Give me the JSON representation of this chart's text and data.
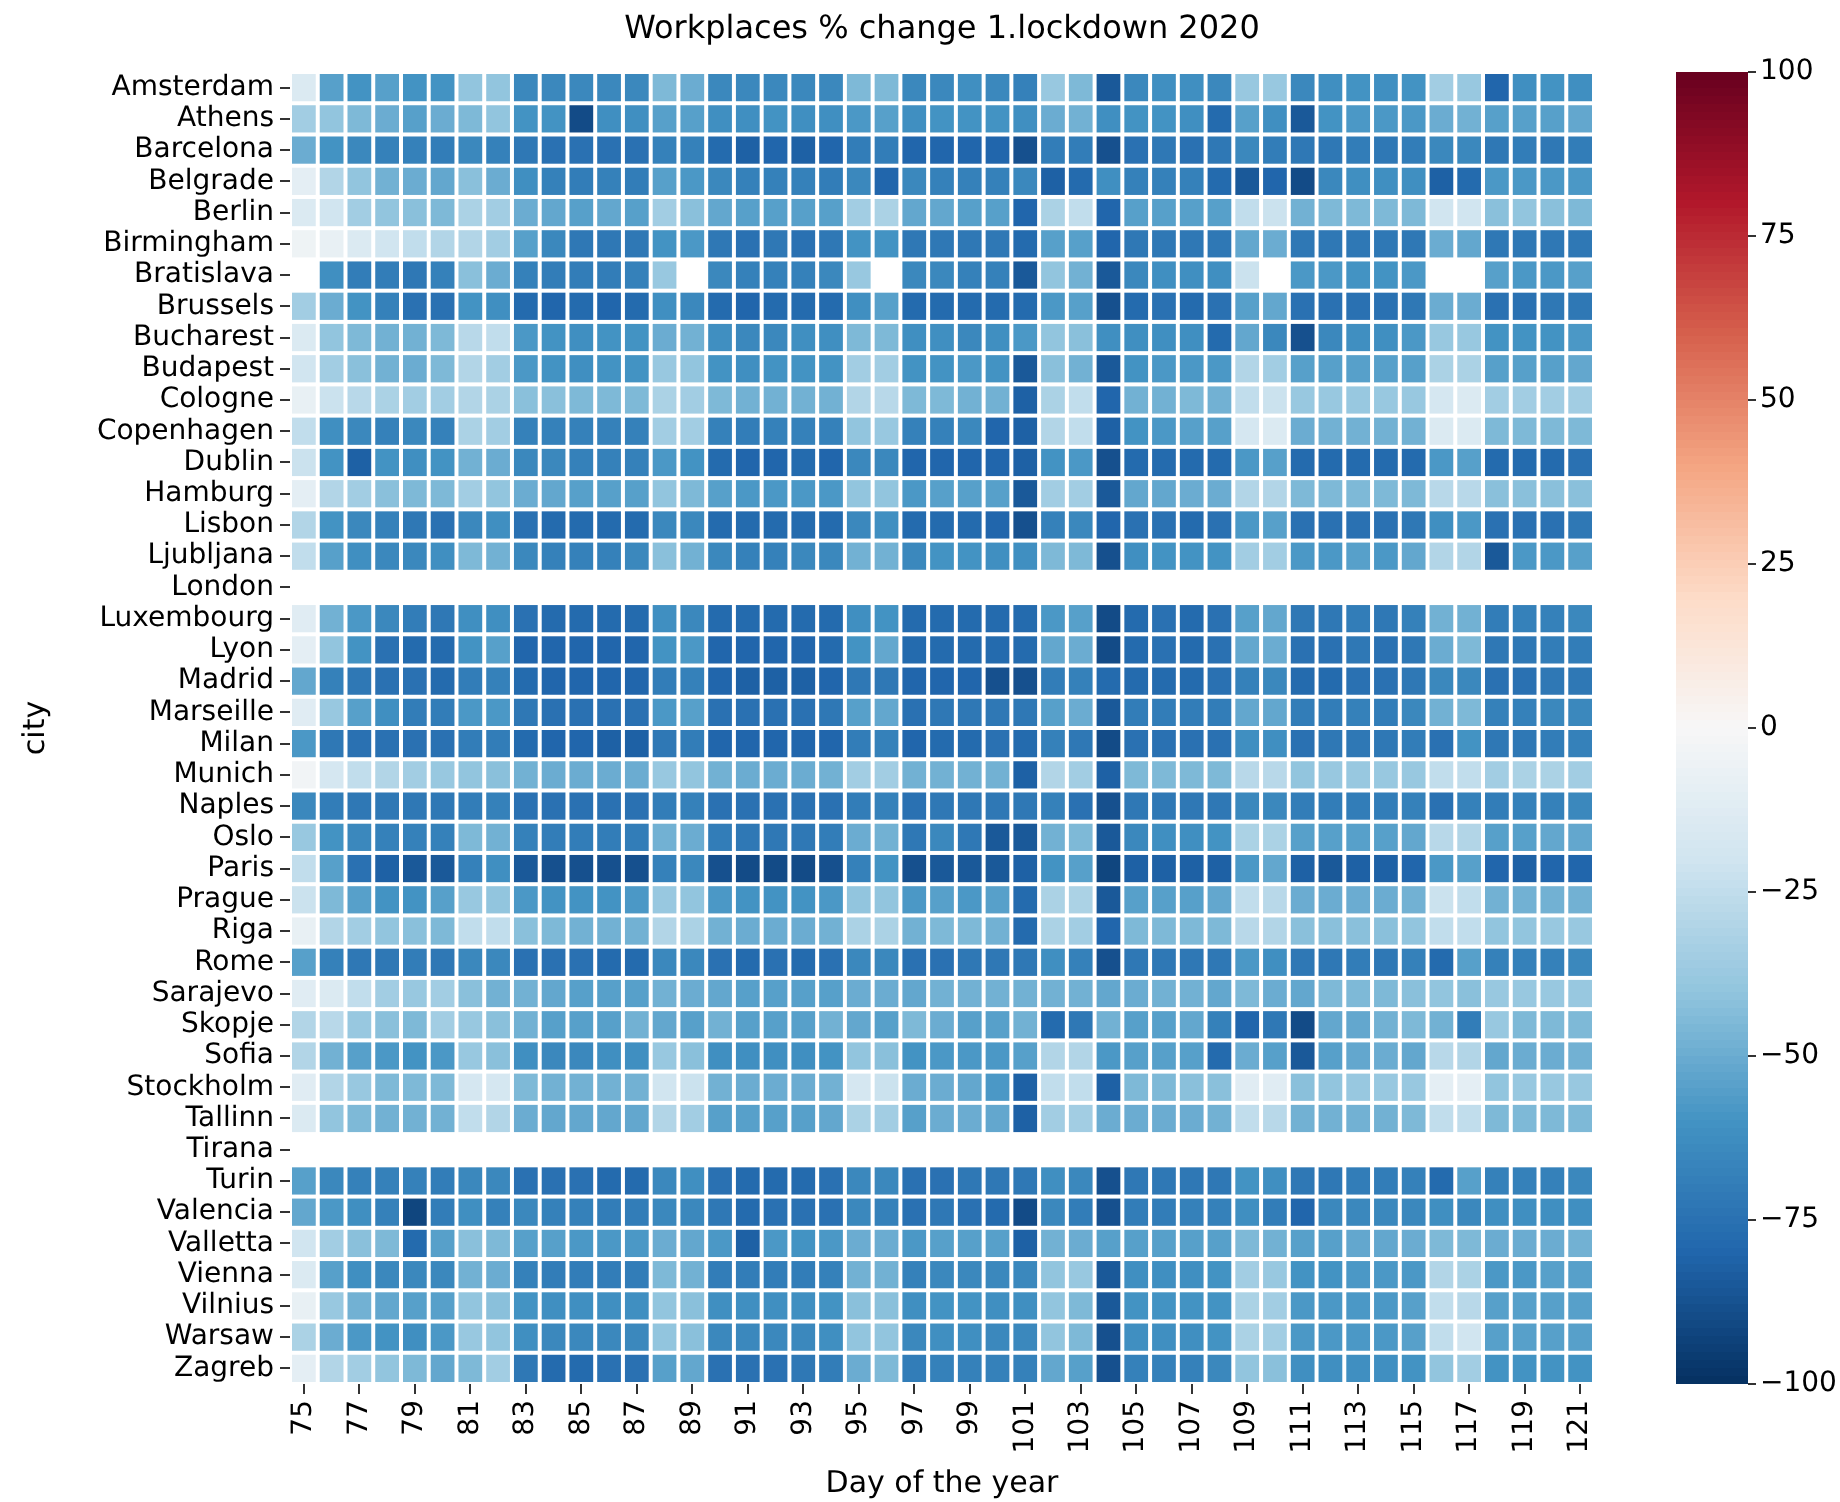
{
  "chart_data": {
    "type": "heatmap",
    "title": "Workplaces % change 1.lockdown 2020",
    "xlabel": "Day of the year",
    "ylabel": "city",
    "categories": [
      "75",
      null,
      "77",
      null,
      "79",
      null,
      "81",
      null,
      "83",
      null,
      "85",
      null,
      "87",
      null,
      "89",
      null,
      "91",
      null,
      "93",
      null,
      "95",
      null,
      "97",
      null,
      "99",
      null,
      "101",
      null,
      "103",
      null,
      "105",
      null,
      "107",
      null,
      "109",
      null,
      "111",
      null,
      "113",
      null,
      "115",
      null,
      "117",
      null,
      "119",
      null,
      "121"
    ],
    "y_categories": [
      "Amsterdam",
      "Athens",
      "Barcelona",
      "Belgrade",
      "Berlin",
      "Birmingham",
      "Bratislava",
      "Brussels",
      "Bucharest",
      "Budapest",
      "Cologne",
      "Copenhagen",
      "Dublin",
      "Hamburg",
      "Lisbon",
      "Ljubljana",
      "London",
      "Luxembourg",
      "Lyon",
      "Madrid",
      "Marseille",
      "Milan",
      "Munich",
      "Naples",
      "Oslo",
      "Paris",
      "Prague",
      "Riga",
      "Rome",
      "Sarajevo",
      "Skopje",
      "Sofia",
      "Stockholm",
      "Tallinn",
      "Tirana",
      "Turin",
      "Valencia",
      "Valletta",
      "Vienna",
      "Vilnius",
      "Warsaw",
      "Zagreb"
    ],
    "cells": [
      [
        -15,
        -55,
        -60,
        -55,
        -60,
        -60,
        -40,
        -40,
        -65,
        -65,
        -65,
        -65,
        -65,
        -45,
        -50,
        -65,
        -65,
        -65,
        -65,
        -65,
        -45,
        -45,
        -65,
        -65,
        -62,
        -65,
        -68,
        -38,
        -45,
        -85,
        -65,
        -62,
        -62,
        -65,
        -38,
        -38,
        -65,
        -62,
        -60,
        -62,
        -60,
        -35,
        -38,
        -80,
        -62,
        -60,
        -62
      ],
      [
        -35,
        -40,
        -45,
        -50,
        -55,
        -50,
        -45,
        -40,
        -60,
        -60,
        -90,
        -62,
        -62,
        -55,
        -55,
        -62,
        -62,
        -60,
        -62,
        -62,
        -58,
        -55,
        -62,
        -60,
        -60,
        -60,
        -62,
        -50,
        -48,
        -62,
        -60,
        -60,
        -62,
        -78,
        -55,
        -62,
        -85,
        -60,
        -58,
        -58,
        -58,
        -50,
        -48,
        -55,
        -55,
        -55,
        -52
      ],
      [
        -50,
        -60,
        -65,
        -68,
        -68,
        -70,
        -65,
        -68,
        -72,
        -75,
        -75,
        -75,
        -75,
        -68,
        -68,
        -78,
        -82,
        -80,
        -82,
        -80,
        -70,
        -70,
        -80,
        -80,
        -80,
        -80,
        -88,
        -70,
        -70,
        -88,
        -75,
        -72,
        -75,
        -72,
        -65,
        -70,
        -72,
        -72,
        -70,
        -72,
        -70,
        -65,
        -65,
        -72,
        -70,
        -72,
        -70
      ],
      [
        -10,
        -30,
        -40,
        -48,
        -50,
        -52,
        -42,
        -50,
        -62,
        -68,
        -70,
        -68,
        -70,
        -55,
        -58,
        -65,
        -68,
        -68,
        -68,
        -70,
        -65,
        -80,
        -65,
        -68,
        -68,
        -68,
        -65,
        -82,
        -78,
        -62,
        -68,
        -68,
        -68,
        -78,
        -85,
        -80,
        -90,
        -65,
        -62,
        -62,
        -62,
        -82,
        -78,
        -58,
        -58,
        -58,
        -58
      ],
      [
        -15,
        -20,
        -35,
        -40,
        -42,
        -45,
        -32,
        -35,
        -50,
        -52,
        -55,
        -52,
        -55,
        -35,
        -42,
        -52,
        -55,
        -55,
        -55,
        -55,
        -35,
        -32,
        -52,
        -52,
        -55,
        -55,
        -80,
        -32,
        -25,
        -80,
        -55,
        -55,
        -55,
        -55,
        -25,
        -22,
        -48,
        -45,
        -45,
        -45,
        -45,
        -20,
        -20,
        -42,
        -40,
        -42,
        -45
      ],
      [
        -5,
        -8,
        -15,
        -20,
        -25,
        -30,
        -30,
        -35,
        -55,
        -65,
        -72,
        -72,
        -72,
        -60,
        -58,
        -72,
        -75,
        -72,
        -75,
        -72,
        -60,
        -60,
        -72,
        -72,
        -72,
        -72,
        -78,
        -55,
        -55,
        -80,
        -72,
        -72,
        -72,
        -72,
        -52,
        -50,
        -72,
        -72,
        -72,
        -72,
        -72,
        -50,
        -52,
        -72,
        -72,
        -72,
        -72
      ],
      [
        null,
        -62,
        -70,
        -70,
        -72,
        -68,
        -42,
        -50,
        -68,
        -70,
        -70,
        -70,
        -68,
        -38,
        null,
        -65,
        -68,
        -68,
        -68,
        -65,
        -38,
        null,
        -65,
        -65,
        -68,
        -68,
        -85,
        -40,
        -48,
        -85,
        -65,
        -62,
        -62,
        -62,
        -22,
        null,
        -58,
        -58,
        -60,
        -60,
        -58,
        null,
        null,
        -55,
        -58,
        -58,
        -55
      ],
      [
        -35,
        -50,
        -60,
        -68,
        -75,
        -75,
        -60,
        -62,
        -78,
        -80,
        -78,
        -80,
        -78,
        -62,
        -65,
        -78,
        -80,
        -78,
        -78,
        -78,
        -62,
        -55,
        -78,
        -78,
        -78,
        -78,
        -78,
        -58,
        -55,
        -88,
        -78,
        -75,
        -78,
        -75,
        -55,
        -52,
        -75,
        -75,
        -75,
        -75,
        -72,
        -50,
        -50,
        -75,
        -75,
        -72,
        -72
      ],
      [
        -15,
        -40,
        -45,
        -48,
        -48,
        -45,
        -28,
        -25,
        -58,
        -60,
        -62,
        -60,
        -60,
        -50,
        -48,
        -62,
        -65,
        -65,
        -62,
        -62,
        -45,
        -45,
        -62,
        -62,
        -65,
        -62,
        -58,
        -40,
        -42,
        -62,
        -62,
        -62,
        -62,
        -78,
        -52,
        -65,
        -88,
        -65,
        -62,
        -62,
        -58,
        -38,
        -38,
        -60,
        -60,
        -60,
        -58
      ],
      [
        -20,
        -35,
        -42,
        -48,
        -50,
        -45,
        -30,
        -35,
        -58,
        -60,
        -62,
        -60,
        -60,
        -38,
        -40,
        -60,
        -62,
        -60,
        -60,
        -60,
        -35,
        -35,
        -60,
        -60,
        -58,
        -60,
        -85,
        -42,
        -48,
        -85,
        -60,
        -58,
        -58,
        -58,
        -30,
        -35,
        -55,
        -55,
        -55,
        -55,
        -55,
        -32,
        -32,
        -55,
        -55,
        -55,
        -52
      ],
      [
        -8,
        -22,
        -28,
        -32,
        -35,
        -35,
        -30,
        -32,
        -42,
        -42,
        -45,
        -45,
        -45,
        -32,
        -35,
        -45,
        -48,
        -48,
        -48,
        -48,
        -30,
        -28,
        -45,
        -45,
        -48,
        -48,
        -82,
        -32,
        -25,
        -80,
        -48,
        -48,
        -45,
        -48,
        -25,
        -22,
        -38,
        -38,
        -38,
        -38,
        -38,
        -18,
        -15,
        -35,
        -35,
        -35,
        -35
      ],
      [
        -25,
        -62,
        -65,
        -68,
        -65,
        -68,
        -32,
        -35,
        -68,
        -68,
        -68,
        -68,
        -68,
        -35,
        -35,
        -68,
        -70,
        -68,
        -68,
        -68,
        -40,
        -38,
        -68,
        -68,
        -65,
        -80,
        -82,
        -30,
        -25,
        -82,
        -60,
        -58,
        -55,
        -55,
        -18,
        -15,
        -50,
        -48,
        -48,
        -48,
        -48,
        -15,
        -15,
        -45,
        -45,
        -45,
        -45
      ],
      [
        -22,
        -60,
        -82,
        -60,
        -62,
        -60,
        -48,
        -50,
        -65,
        -65,
        -68,
        -68,
        -68,
        -58,
        -60,
        -78,
        -80,
        -80,
        -78,
        -80,
        -65,
        -65,
        -80,
        -80,
        -80,
        -80,
        -82,
        -60,
        -58,
        -88,
        -78,
        -78,
        -78,
        -78,
        -58,
        -55,
        -78,
        -78,
        -78,
        -78,
        -78,
        -58,
        -55,
        -78,
        -78,
        -78,
        -75
      ],
      [
        -10,
        -30,
        -35,
        -42,
        -45,
        -45,
        -35,
        -40,
        -50,
        -52,
        -55,
        -55,
        -55,
        -40,
        -45,
        -55,
        -58,
        -58,
        -58,
        -58,
        -40,
        -40,
        -58,
        -55,
        -55,
        -55,
        -85,
        -35,
        -35,
        -85,
        -52,
        -52,
        -50,
        -50,
        -30,
        -30,
        -45,
        -45,
        -45,
        -45,
        -45,
        -28,
        -28,
        -42,
        -42,
        -42,
        -42
      ],
      [
        -30,
        -60,
        -65,
        -68,
        -72,
        -75,
        -65,
        -62,
        -75,
        -78,
        -78,
        -78,
        -78,
        -65,
        -65,
        -78,
        -78,
        -78,
        -78,
        -78,
        -65,
        -62,
        -78,
        -78,
        -78,
        -80,
        -88,
        -68,
        -65,
        -80,
        -75,
        -75,
        -78,
        -75,
        -58,
        -55,
        -75,
        -75,
        -75,
        -75,
        -72,
        -62,
        -58,
        -75,
        -75,
        -75,
        -72
      ],
      [
        -25,
        -55,
        -62,
        -65,
        -65,
        -62,
        -45,
        -48,
        -65,
        -68,
        -68,
        -68,
        -65,
        -42,
        -48,
        -65,
        -68,
        -68,
        -65,
        -65,
        -48,
        -48,
        -65,
        -60,
        -60,
        -62,
        -62,
        -45,
        -45,
        -88,
        -62,
        -60,
        -60,
        -60,
        -35,
        -35,
        -58,
        -58,
        -55,
        -58,
        -52,
        -30,
        -30,
        -85,
        -58,
        -58,
        -55
      ],
      [
        null,
        null,
        null,
        null,
        null,
        null,
        null,
        null,
        null,
        null,
        null,
        null,
        null,
        null,
        null,
        null,
        null,
        null,
        null,
        null,
        null,
        null,
        null,
        null,
        null,
        null,
        null,
        null,
        null,
        null,
        null,
        null,
        null,
        null,
        null,
        null,
        null,
        null,
        null,
        null,
        null,
        null,
        null,
        null,
        null,
        null,
        null
      ],
      [
        -12,
        -48,
        -58,
        -65,
        -70,
        -72,
        -62,
        -62,
        -75,
        -78,
        -78,
        -78,
        -78,
        -62,
        -65,
        -78,
        -78,
        -78,
        -78,
        -78,
        -62,
        -60,
        -78,
        -78,
        -78,
        -78,
        -78,
        -58,
        -55,
        -90,
        -78,
        -75,
        -78,
        -75,
        -55,
        -52,
        -72,
        -72,
        -70,
        -72,
        -68,
        -48,
        -48,
        -70,
        -68,
        -68,
        -65
      ],
      [
        -10,
        -40,
        -60,
        -75,
        -78,
        -78,
        -60,
        -55,
        -80,
        -80,
        -80,
        -80,
        -80,
        -60,
        -58,
        -80,
        -80,
        -80,
        -80,
        -78,
        -60,
        -52,
        -78,
        -78,
        -78,
        -78,
        -78,
        -52,
        -50,
        -90,
        -78,
        -75,
        -78,
        -75,
        -52,
        -50,
        -75,
        -75,
        -72,
        -75,
        -72,
        -50,
        -45,
        -72,
        -72,
        -70,
        -70
      ],
      [
        -52,
        -68,
        -72,
        -75,
        -75,
        -78,
        -70,
        -68,
        -78,
        -80,
        -80,
        -80,
        -80,
        -70,
        -68,
        -80,
        -82,
        -82,
        -82,
        -80,
        -72,
        -72,
        -80,
        -80,
        -80,
        -88,
        -88,
        -70,
        -68,
        -78,
        -78,
        -78,
        -78,
        -75,
        -68,
        -65,
        -78,
        -78,
        -75,
        -75,
        -72,
        -65,
        -65,
        -75,
        -75,
        -72,
        -72
      ],
      [
        -12,
        -38,
        -55,
        -62,
        -70,
        -70,
        -58,
        -58,
        -72,
        -75,
        -75,
        -75,
        -75,
        -58,
        -55,
        -75,
        -75,
        -75,
        -75,
        -72,
        -55,
        -52,
        -75,
        -72,
        -72,
        -72,
        -72,
        -55,
        -50,
        -85,
        -70,
        -70,
        -70,
        -70,
        -52,
        -52,
        -70,
        -70,
        -68,
        -70,
        -65,
        -48,
        -45,
        -68,
        -68,
        -65,
        -65
      ],
      [
        -58,
        -72,
        -75,
        -75,
        -75,
        -75,
        -70,
        -70,
        -78,
        -80,
        -80,
        -82,
        -82,
        -72,
        -70,
        -80,
        -80,
        -80,
        -80,
        -80,
        -70,
        -68,
        -80,
        -78,
        -78,
        -75,
        -78,
        -68,
        -72,
        -90,
        -75,
        -75,
        -75,
        -75,
        -62,
        -62,
        -75,
        -72,
        -72,
        -72,
        -70,
        -75,
        -60,
        -72,
        -72,
        -70,
        -68
      ],
      [
        -3,
        -18,
        -25,
        -30,
        -35,
        -38,
        -40,
        -42,
        -48,
        -50,
        -50,
        -50,
        -50,
        -38,
        -40,
        -48,
        -50,
        -50,
        -50,
        -48,
        -35,
        -35,
        -48,
        -48,
        -48,
        -48,
        -82,
        -30,
        -35,
        -82,
        -45,
        -45,
        -45,
        -45,
        -28,
        -28,
        -40,
        -38,
        -38,
        -38,
        -38,
        -25,
        -25,
        -35,
        -32,
        -32,
        -35
      ],
      [
        -65,
        -70,
        -72,
        -72,
        -72,
        -72,
        -70,
        -68,
        -75,
        -75,
        -75,
        -75,
        -75,
        -70,
        -68,
        -75,
        -75,
        -75,
        -75,
        -75,
        -70,
        -68,
        -75,
        -72,
        -72,
        -72,
        -72,
        -68,
        -75,
        -88,
        -72,
        -72,
        -72,
        -72,
        -65,
        -65,
        -70,
        -70,
        -70,
        -70,
        -68,
        -75,
        -68,
        -70,
        -68,
        -68,
        -65
      ],
      [
        -38,
        -60,
        -65,
        -68,
        -68,
        -68,
        -45,
        -48,
        -68,
        -70,
        -70,
        -70,
        -70,
        -48,
        -50,
        -70,
        -72,
        -72,
        -72,
        -70,
        -50,
        -48,
        -72,
        -65,
        -72,
        -85,
        -85,
        -48,
        -45,
        -85,
        -65,
        -62,
        -62,
        -60,
        -32,
        -32,
        -55,
        -55,
        -55,
        -55,
        -52,
        -28,
        -30,
        -55,
        -55,
        -52,
        -52
      ],
      [
        -25,
        -55,
        -75,
        -82,
        -85,
        -85,
        -68,
        -62,
        -85,
        -88,
        -88,
        -88,
        -88,
        -68,
        -65,
        -88,
        -90,
        -90,
        -90,
        -88,
        -68,
        -60,
        -88,
        -85,
        -85,
        -85,
        -82,
        -60,
        -55,
        -92,
        -82,
        -82,
        -82,
        -82,
        -58,
        -52,
        -82,
        -85,
        -82,
        -82,
        -80,
        -58,
        -55,
        -80,
        -82,
        -80,
        -80
      ],
      [
        -22,
        -45,
        -55,
        -60,
        -60,
        -55,
        -38,
        -40,
        -58,
        -60,
        -60,
        -60,
        -58,
        -38,
        -40,
        -58,
        -60,
        -60,
        -60,
        -58,
        -40,
        -40,
        -58,
        -55,
        -58,
        -55,
        -78,
        -32,
        -32,
        -85,
        -55,
        -55,
        -55,
        -52,
        -25,
        -28,
        -50,
        -50,
        -50,
        -50,
        -48,
        -22,
        -25,
        -48,
        -48,
        -48,
        -48
      ],
      [
        -8,
        -30,
        -35,
        -40,
        -42,
        -45,
        -25,
        -25,
        -42,
        -45,
        -48,
        -48,
        -48,
        -30,
        -32,
        -48,
        -50,
        -50,
        -50,
        -48,
        -32,
        -32,
        -48,
        -45,
        -45,
        -48,
        -78,
        -32,
        -35,
        -80,
        -45,
        -45,
        -45,
        -45,
        -28,
        -30,
        -42,
        -42,
        -42,
        -42,
        -40,
        -25,
        -25,
        -40,
        -40,
        -38,
        -38
      ],
      [
        -55,
        -68,
        -72,
        -72,
        -70,
        -72,
        -65,
        -65,
        -75,
        -75,
        -75,
        -78,
        -78,
        -65,
        -65,
        -75,
        -78,
        -75,
        -78,
        -75,
        -65,
        -65,
        -75,
        -75,
        -72,
        -72,
        -72,
        -62,
        -68,
        -88,
        -72,
        -72,
        -72,
        -72,
        -58,
        -62,
        -72,
        -72,
        -70,
        -72,
        -68,
        -78,
        -55,
        -68,
        -68,
        -68,
        -65
      ],
      [
        -12,
        -15,
        -25,
        -35,
        -38,
        -35,
        -42,
        -48,
        -48,
        -52,
        -55,
        -55,
        -55,
        -48,
        -50,
        -52,
        -55,
        -55,
        -55,
        -55,
        -50,
        -50,
        -52,
        -48,
        -48,
        -48,
        -48,
        -48,
        -48,
        -52,
        -50,
        -48,
        -48,
        -52,
        -45,
        -50,
        -52,
        -45,
        -45,
        -45,
        -42,
        -40,
        -42,
        -38,
        -38,
        -38,
        -38
      ],
      [
        -30,
        -28,
        -38,
        -42,
        -45,
        -35,
        -38,
        -42,
        -48,
        -55,
        -55,
        -55,
        -48,
        -52,
        -55,
        -48,
        -55,
        -55,
        -55,
        -48,
        -52,
        -55,
        -45,
        -50,
        -55,
        -55,
        -48,
        -78,
        -72,
        -48,
        -55,
        -55,
        -52,
        -68,
        -80,
        -72,
        -90,
        -52,
        -52,
        -48,
        -45,
        -48,
        -70,
        -38,
        -45,
        -45,
        -45
      ],
      [
        -30,
        -48,
        -55,
        -58,
        -60,
        -58,
        -38,
        -42,
        -62,
        -65,
        -65,
        -62,
        -62,
        -38,
        -42,
        -62,
        -62,
        -62,
        -62,
        -60,
        -40,
        -42,
        -60,
        -58,
        -58,
        -58,
        -55,
        -30,
        -30,
        -58,
        -55,
        -55,
        -55,
        -78,
        -50,
        -55,
        -85,
        -55,
        -52,
        -50,
        -52,
        -28,
        -30,
        -52,
        -50,
        -50,
        -48
      ],
      [
        -12,
        -30,
        -38,
        -45,
        -45,
        -45,
        -18,
        -18,
        -45,
        -48,
        -48,
        -48,
        -48,
        -20,
        -22,
        -48,
        -50,
        -50,
        -50,
        -48,
        -18,
        -22,
        -50,
        -50,
        -52,
        -58,
        -82,
        -25,
        -25,
        -82,
        -45,
        -45,
        -42,
        -42,
        -12,
        -12,
        -42,
        -40,
        -38,
        -38,
        -38,
        -10,
        -10,
        -40,
        -38,
        -38,
        -38
      ],
      [
        -15,
        -40,
        -45,
        -48,
        -48,
        -48,
        -25,
        -30,
        -50,
        -52,
        -52,
        -52,
        -52,
        -30,
        -35,
        -55,
        -55,
        -55,
        -55,
        -52,
        -32,
        -35,
        -55,
        -50,
        -50,
        -52,
        -82,
        -35,
        -35,
        -50,
        -50,
        -50,
        -50,
        -48,
        -25,
        -28,
        -48,
        -48,
        -48,
        -48,
        -45,
        -25,
        -25,
        -45,
        -45,
        -45,
        -45
      ],
      [
        null,
        null,
        null,
        null,
        null,
        null,
        null,
        null,
        null,
        null,
        null,
        null,
        null,
        null,
        null,
        null,
        null,
        null,
        null,
        null,
        null,
        null,
        null,
        null,
        null,
        null,
        null,
        null,
        null,
        null,
        null,
        null,
        null,
        null,
        null,
        null,
        null,
        null,
        null,
        null,
        null,
        null,
        null,
        null,
        null,
        null,
        null
      ],
      [
        -55,
        -65,
        -68,
        -68,
        -68,
        -70,
        -65,
        -65,
        -75,
        -75,
        -75,
        -78,
        -78,
        -65,
        -62,
        -75,
        -78,
        -78,
        -78,
        -75,
        -65,
        -65,
        -75,
        -75,
        -72,
        -72,
        -72,
        -62,
        -65,
        -88,
        -72,
        -72,
        -72,
        -72,
        -60,
        -62,
        -72,
        -72,
        -70,
        -70,
        -68,
        -78,
        -55,
        -68,
        -68,
        -68,
        -65
      ],
      [
        -52,
        -58,
        -62,
        -68,
        -92,
        -70,
        -62,
        -68,
        -65,
        -68,
        -68,
        -70,
        -70,
        -65,
        -65,
        -72,
        -78,
        -75,
        -75,
        -75,
        -65,
        -68,
        -75,
        -72,
        -75,
        -78,
        -90,
        -65,
        -70,
        -88,
        -70,
        -70,
        -68,
        -68,
        -62,
        -70,
        -80,
        -65,
        -65,
        -65,
        -65,
        -62,
        -65,
        -62,
        -62,
        -62,
        -62
      ],
      [
        -20,
        -35,
        -42,
        -45,
        -78,
        -55,
        -42,
        -45,
        -55,
        -55,
        -58,
        -58,
        -58,
        -50,
        -52,
        -58,
        -82,
        -58,
        -60,
        -58,
        -50,
        -50,
        -58,
        -55,
        -55,
        -55,
        -82,
        -48,
        -50,
        -55,
        -55,
        -55,
        -55,
        -55,
        -45,
        -48,
        -55,
        -55,
        -52,
        -52,
        -50,
        -45,
        -45,
        -50,
        -50,
        -50,
        -48
      ],
      [
        -15,
        -55,
        -62,
        -65,
        -65,
        -65,
        -48,
        -50,
        -68,
        -70,
        -70,
        -70,
        -70,
        -45,
        -48,
        -70,
        -70,
        -70,
        -70,
        -68,
        -48,
        -48,
        -68,
        -65,
        -65,
        -65,
        -65,
        -40,
        -38,
        -85,
        -62,
        -62,
        -62,
        -60,
        -35,
        -38,
        -60,
        -60,
        -58,
        -58,
        -58,
        -30,
        -32,
        -58,
        -58,
        -55,
        -55
      ],
      [
        -8,
        -38,
        -48,
        -52,
        -55,
        -55,
        -40,
        -42,
        -60,
        -62,
        -62,
        -62,
        -62,
        -40,
        -42,
        -62,
        -62,
        -62,
        -62,
        -60,
        -42,
        -42,
        -62,
        -60,
        -60,
        -62,
        -62,
        -40,
        -45,
        -85,
        -60,
        -60,
        -60,
        -60,
        -32,
        -35,
        -58,
        -58,
        -58,
        -58,
        -55,
        -25,
        -28,
        -55,
        -55,
        -55,
        -55
      ],
      [
        -32,
        -50,
        -58,
        -60,
        -62,
        -58,
        -38,
        -40,
        -62,
        -65,
        -65,
        -65,
        -65,
        -40,
        -42,
        -65,
        -65,
        -65,
        -65,
        -62,
        -40,
        -40,
        -65,
        -62,
        -62,
        -65,
        -65,
        -40,
        -45,
        -88,
        -62,
        -62,
        -62,
        -60,
        -32,
        -35,
        -58,
        -58,
        -58,
        -58,
        -55,
        -25,
        -20,
        -55,
        -55,
        -55,
        -55
      ],
      [
        -10,
        -30,
        -35,
        -40,
        -45,
        -52,
        -45,
        -35,
        -72,
        -78,
        -78,
        -75,
        -75,
        -55,
        -52,
        -75,
        -75,
        -75,
        -72,
        -70,
        -50,
        -45,
        -70,
        -68,
        -68,
        -68,
        -68,
        -52,
        -55,
        -88,
        -68,
        -68,
        -68,
        -65,
        -40,
        -42,
        -62,
        -62,
        -62,
        -62,
        -60,
        -40,
        -35,
        -60,
        -60,
        -60,
        -60
      ]
    ],
    "clim": [
      -100,
      100
    ],
    "cticks": [
      {
        "value": -100,
        "label": "−100"
      },
      {
        "value": -75,
        "label": "−75"
      },
      {
        "value": -50,
        "label": "−50"
      },
      {
        "value": -25,
        "label": "−25"
      },
      0,
      25,
      50,
      75,
      100
    ]
  }
}
